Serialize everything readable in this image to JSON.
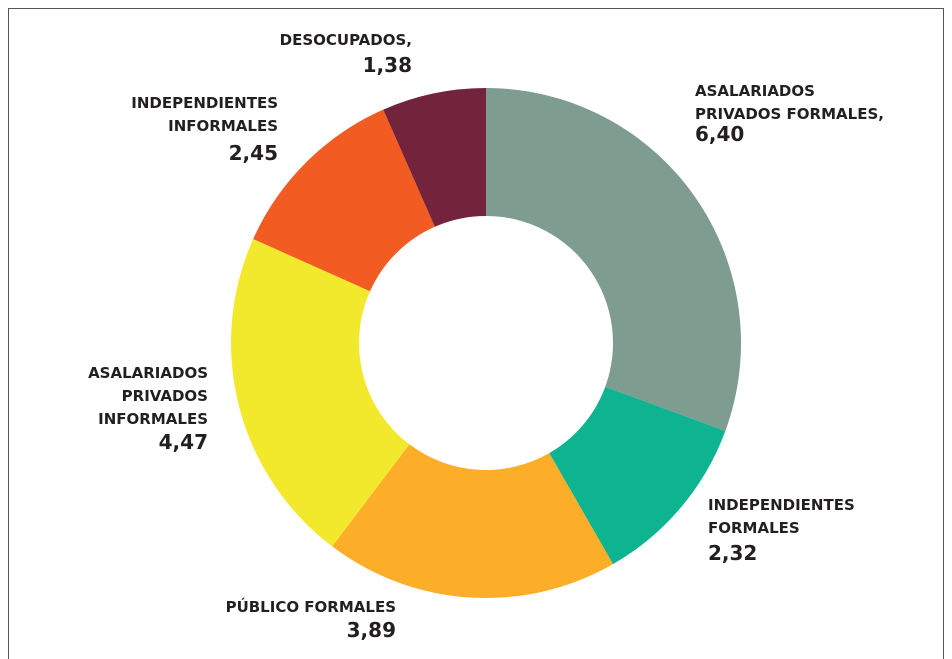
{
  "chart_data": {
    "type": "donut",
    "categories": [
      "ASALARIADOS\nPRIVADOS FORMALES,",
      "INDEPENDIENTES\nFORMALES",
      "PÚBLICO FORMALES",
      "ASALARIADOS\nPRIVADOS\nINFORMALES",
      "INDEPENDIENTES\nINFORMALES",
      "DESOCUPADOS,"
    ],
    "values": [
      6.4,
      2.32,
      3.89,
      4.47,
      2.45,
      1.38
    ],
    "value_labels": [
      "6,40",
      "2,32",
      "3,89",
      "4,47",
      "2,45",
      "1,38"
    ],
    "colors": [
      "#7f9c90",
      "#0db48f",
      "#fcae29",
      "#f2e92d",
      "#f25c22",
      "#73233c"
    ]
  }
}
